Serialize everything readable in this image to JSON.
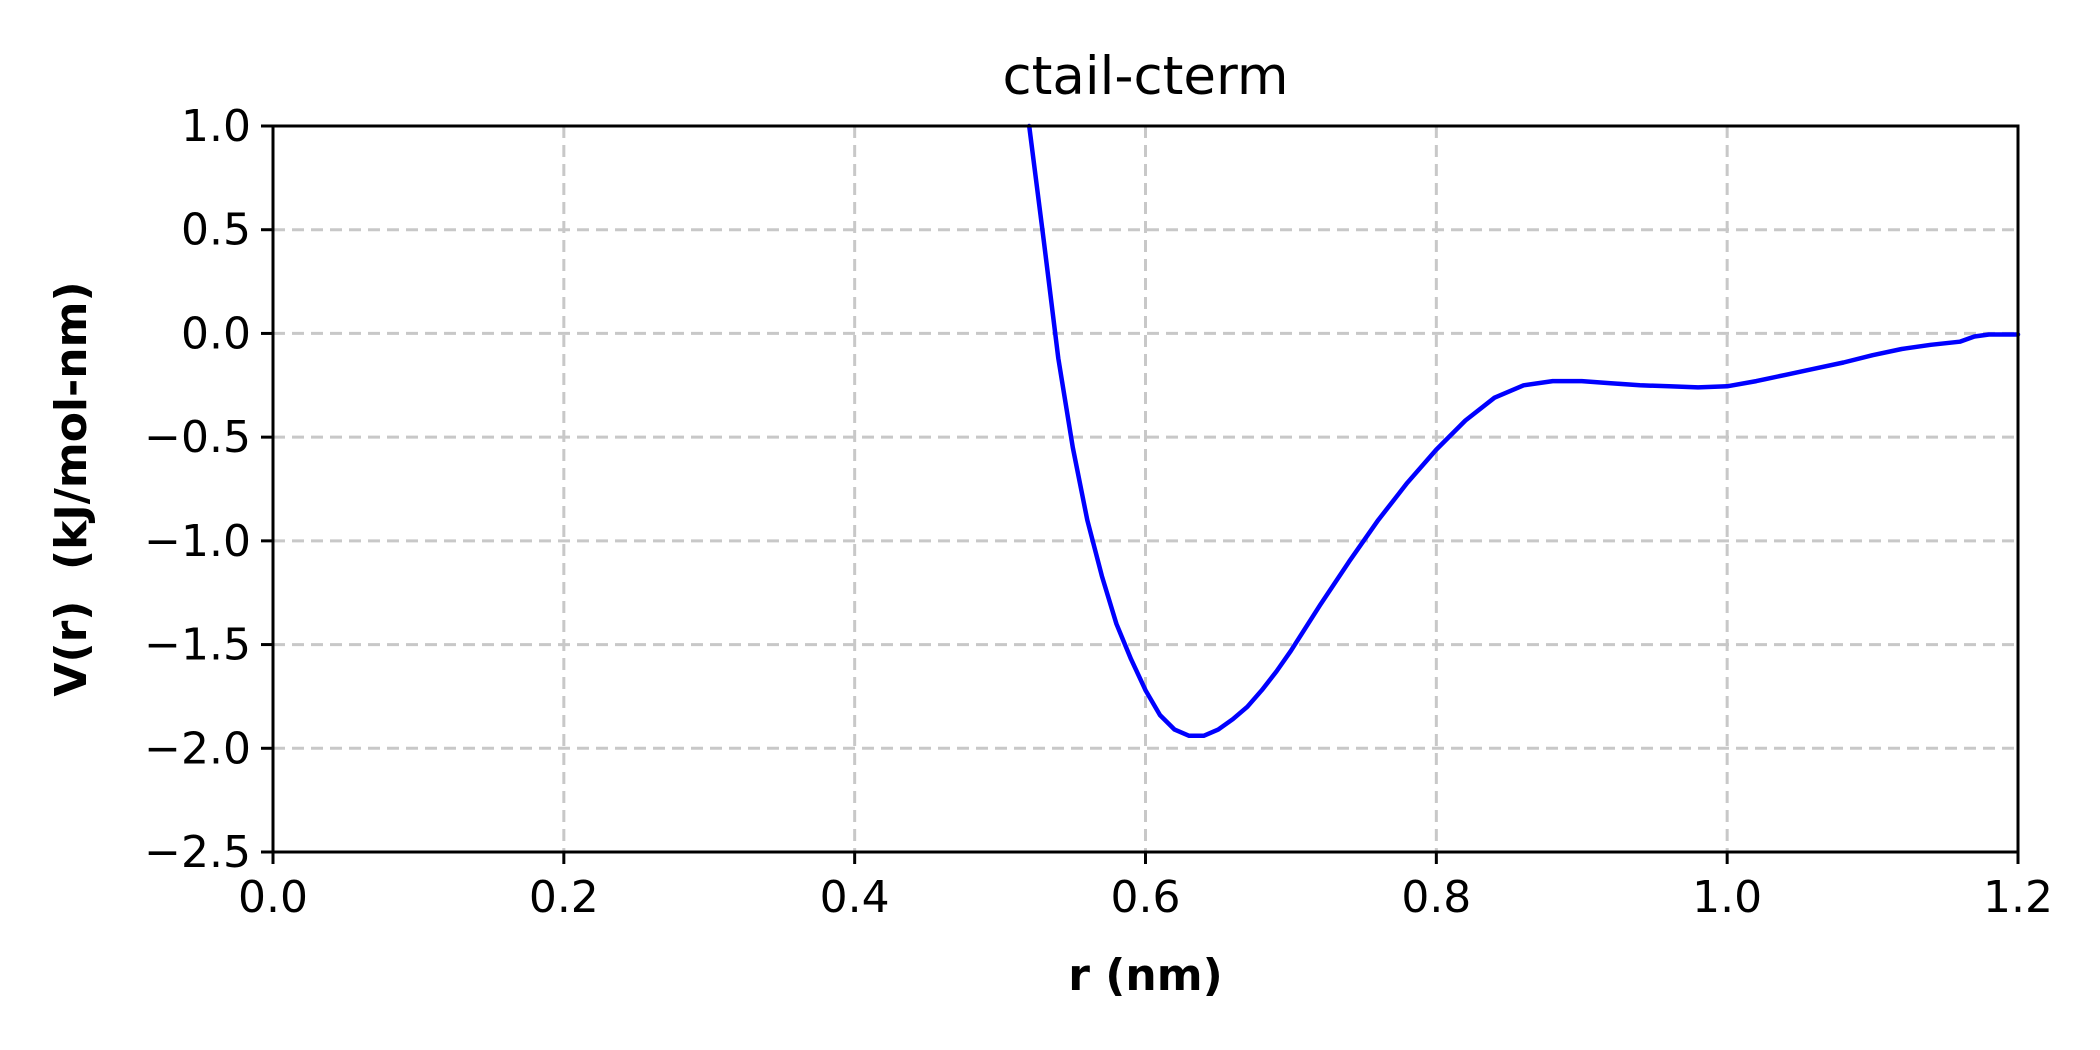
{
  "chart_data": {
    "type": "line",
    "title": "ctail-cterm",
    "xlabel": "r (nm)",
    "ylabel": "V(r)  (kJ/mol-nm)",
    "xlim": [
      0.0,
      1.2
    ],
    "ylim": [
      -2.5,
      1.0
    ],
    "xticks": [
      0.0,
      0.2,
      0.4,
      0.6,
      0.8,
      1.0,
      1.2
    ],
    "xtick_labels": [
      "0.0",
      "0.2",
      "0.4",
      "0.6",
      "0.8",
      "1.0",
      "1.2"
    ],
    "yticks": [
      1.0,
      0.5,
      0.0,
      -0.5,
      -1.0,
      -1.5,
      -2.0,
      -2.5
    ],
    "ytick_labels": [
      "1.0",
      "0.5",
      "0.0",
      "−0.5",
      "−1.0",
      "−1.5",
      "−2.0",
      "−2.5"
    ],
    "grid": true,
    "series": [
      {
        "color": "#0000ff",
        "x": [
          0.52,
          0.53,
          0.54,
          0.55,
          0.56,
          0.57,
          0.58,
          0.59,
          0.6,
          0.61,
          0.62,
          0.63,
          0.64,
          0.65,
          0.66,
          0.67,
          0.68,
          0.69,
          0.7,
          0.72,
          0.74,
          0.76,
          0.78,
          0.8,
          0.82,
          0.84,
          0.86,
          0.88,
          0.9,
          0.92,
          0.94,
          0.96,
          0.98,
          1.0,
          1.02,
          1.04,
          1.06,
          1.08,
          1.1,
          1.12,
          1.14,
          1.16,
          1.17,
          1.18,
          1.2
        ],
        "y": [
          1.0,
          0.45,
          -0.12,
          -0.55,
          -0.9,
          -1.17,
          -1.4,
          -1.57,
          -1.72,
          -1.84,
          -1.91,
          -1.94,
          -1.94,
          -1.91,
          -1.86,
          -1.8,
          -1.72,
          -1.63,
          -1.53,
          -1.31,
          -1.1,
          -0.9,
          -0.72,
          -0.56,
          -0.42,
          -0.31,
          -0.25,
          -0.23,
          -0.23,
          -0.24,
          -0.25,
          -0.255,
          -0.26,
          -0.255,
          -0.23,
          -0.2,
          -0.17,
          -0.14,
          -0.105,
          -0.075,
          -0.055,
          -0.04,
          -0.015,
          -0.005,
          -0.005
        ]
      }
    ]
  }
}
